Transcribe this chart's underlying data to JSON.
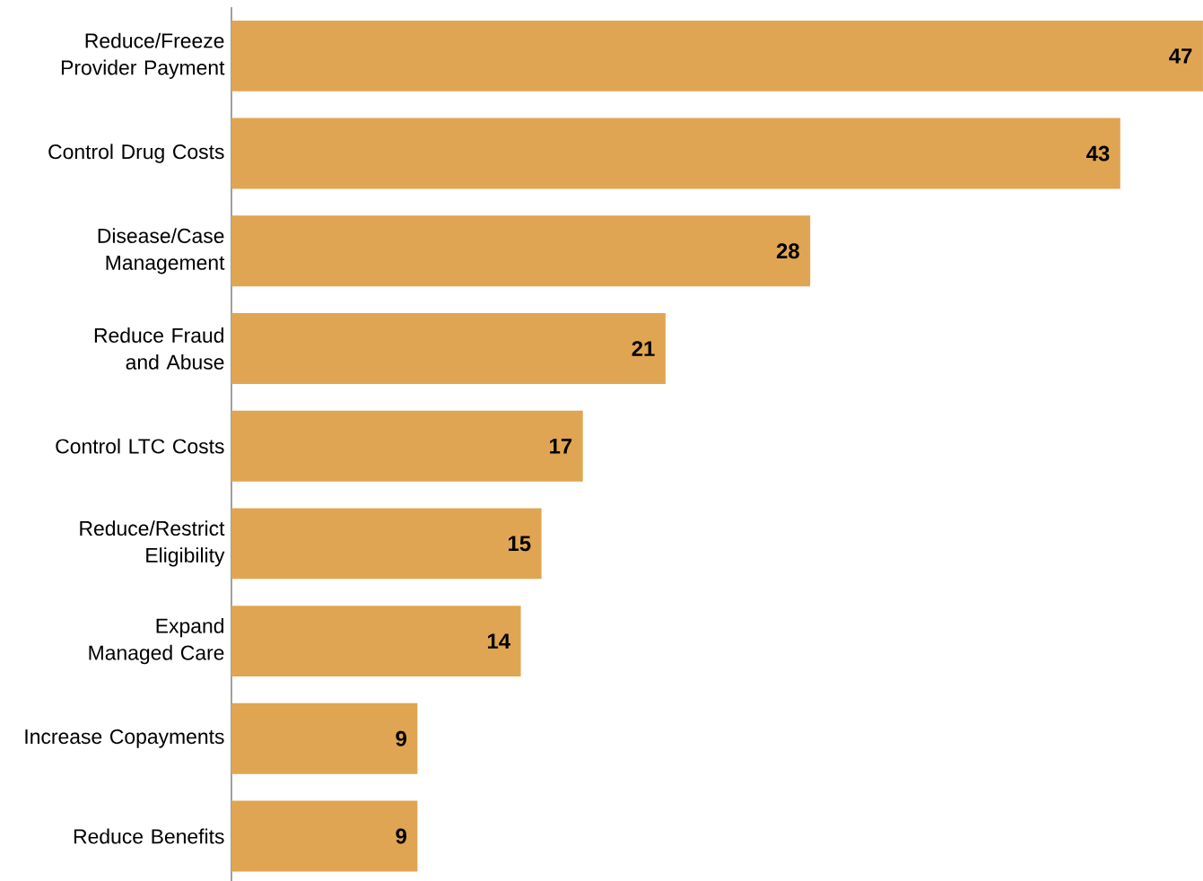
{
  "chart_data": {
    "type": "bar",
    "orientation": "horizontal",
    "data_labels": true,
    "color": "#e0a552",
    "categories": [
      "Reduce/Freeze Provider Payment",
      "Control Drug Costs",
      "Disease/Case Management",
      "Reduce Fraud and Abuse",
      "Control LTC Costs",
      "Reduce/Restrict Eligibility",
      "Expand Managed Care",
      "Increase Copayments",
      "Reduce Benefits"
    ],
    "values": [
      47,
      43,
      28,
      21,
      17,
      15,
      14,
      9,
      9
    ]
  }
}
